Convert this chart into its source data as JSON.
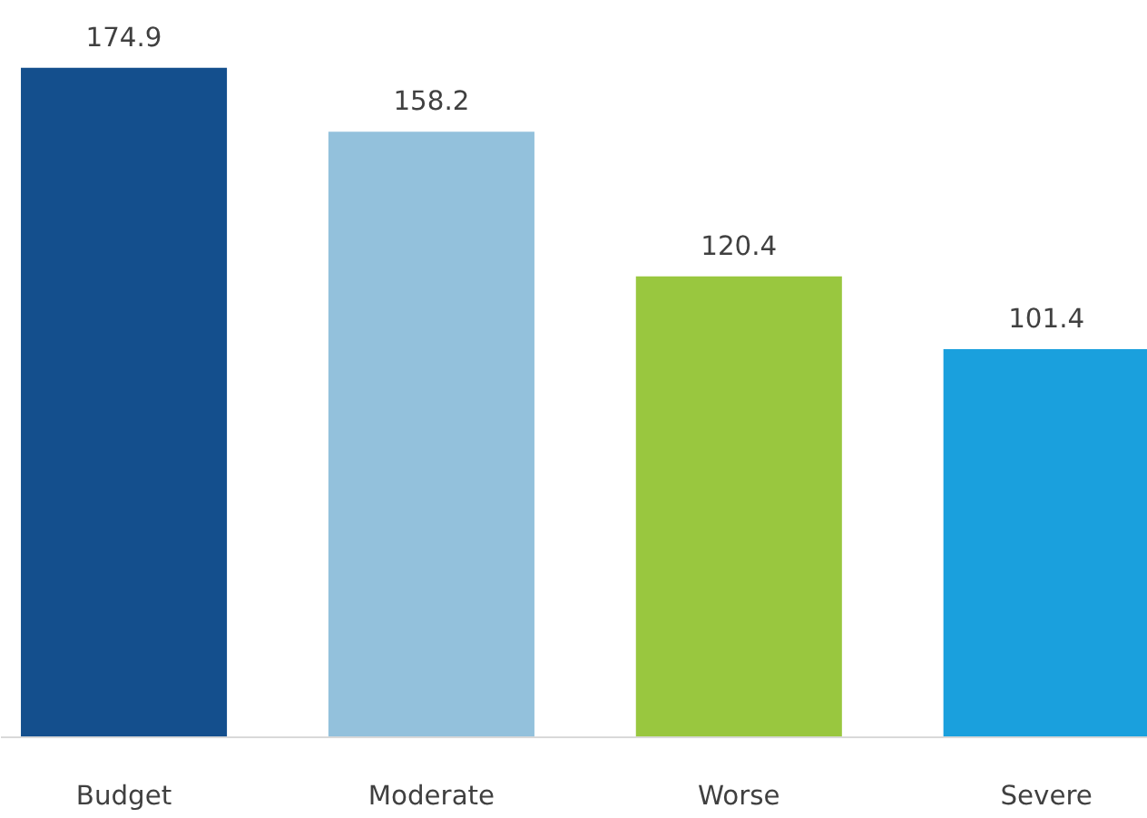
{
  "chart_data": {
    "type": "bar",
    "categories": [
      "Budget",
      "Moderate",
      "Worse",
      "Severe"
    ],
    "values": [
      174.9,
      158.2,
      120.4,
      101.4
    ],
    "colors": [
      "#144f8d",
      "#93c1dc",
      "#99c73f",
      "#1aa0dd"
    ],
    "data_labels": true
  }
}
